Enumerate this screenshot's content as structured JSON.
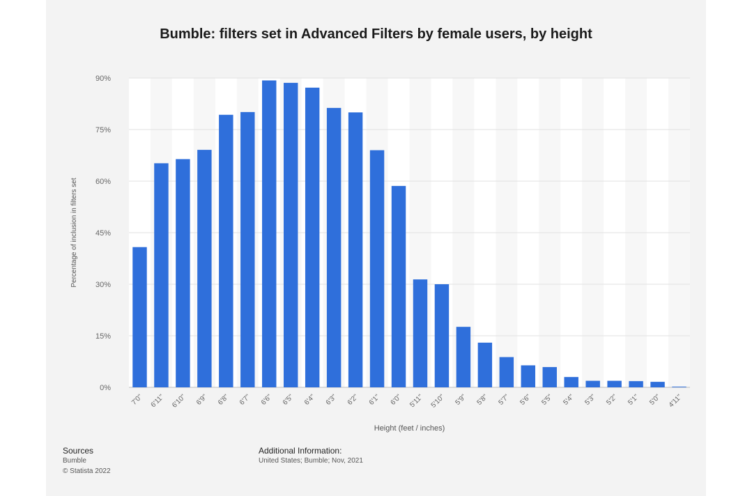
{
  "page": {
    "sources_heading": "Sources",
    "sources_line1": "Bumble",
    "sources_line2": "© Statista 2022",
    "additional_heading": "Additional Information:",
    "additional_text": "United States; Bumble; Nov, 2021"
  },
  "colors": {
    "bar": "#2f6fdb",
    "grid": "#e2e2e2",
    "stripe_a": "#ffffff",
    "stripe_b": "#f7f7f7"
  },
  "chart_data": {
    "type": "bar",
    "title": "Bumble: filters set in Advanced Filters by female users, by height",
    "xlabel": "Height (feet / inches)",
    "ylabel": "Percentage of inclusion in filters set",
    "ylim": [
      0,
      90
    ],
    "yticks": [
      0,
      15,
      30,
      45,
      60,
      75,
      90
    ],
    "ytick_labels": [
      "0%",
      "15%",
      "30%",
      "45%",
      "60%",
      "75%",
      "90%"
    ],
    "grid": true,
    "categories": [
      "7'0\"",
      "6'11\"",
      "6'10\"",
      "6'9\"",
      "6'8\"",
      "6'7\"",
      "6'6\"",
      "6'5\"",
      "6'4\"",
      "6'3\"",
      "6'2\"",
      "6'1\"",
      "6'0\"",
      "5'11\"",
      "5'10\"",
      "5'9\"",
      "5'8\"",
      "5'7\"",
      "5'6\"",
      "5'5\"",
      "5'4\"",
      "5'3\"",
      "5'2\"",
      "5'1\"",
      "5'0\"",
      "4'11\""
    ],
    "values": [
      40.8,
      65.2,
      66.4,
      69.1,
      79.3,
      80.1,
      89.3,
      88.6,
      87.2,
      81.3,
      80.0,
      69.0,
      58.6,
      31.4,
      30.0,
      17.6,
      13.0,
      8.8,
      6.4,
      5.9,
      3.0,
      1.9,
      1.9,
      1.8,
      1.6,
      0.2
    ]
  }
}
